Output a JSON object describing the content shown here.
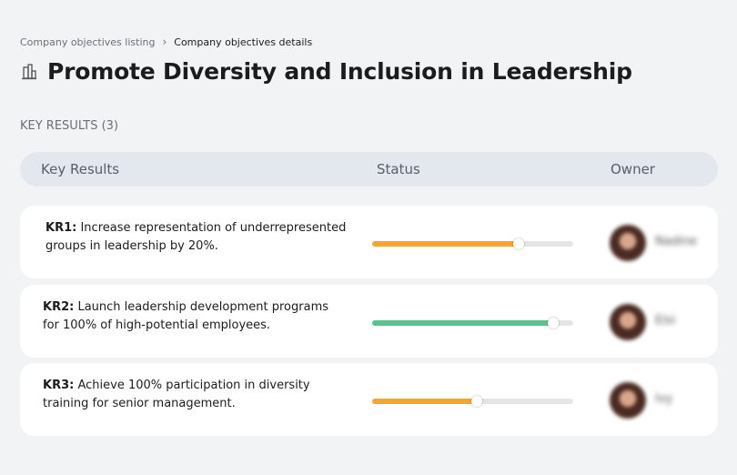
{
  "breadcrumb": {
    "items": [
      "Company objectives listing",
      "Company objectives details"
    ]
  },
  "header": {
    "title": "Promote Diversity and Inclusion in Leadership"
  },
  "section": {
    "title": "KEY RESULTS (3)"
  },
  "table": {
    "columns": [
      "Key Results",
      "Status",
      "Owner"
    ],
    "rows": [
      {
        "label": "KR1:",
        "text": "Increase representation of underrepresented groups in leadership by 20%.",
        "progress": 73,
        "color": "#f6a531",
        "owner": "Nadine"
      },
      {
        "label": "KR2:",
        "text": "Launch leadership development programs for 100% of high-potential employees.",
        "progress": 90,
        "color": "#56c48c",
        "owner": "Elsi"
      },
      {
        "label": "KR3:",
        "text": "Achieve 100% participation in diversity training for senior management.",
        "progress": 52,
        "color": "#f6a531",
        "owner": "Ivy"
      }
    ]
  }
}
